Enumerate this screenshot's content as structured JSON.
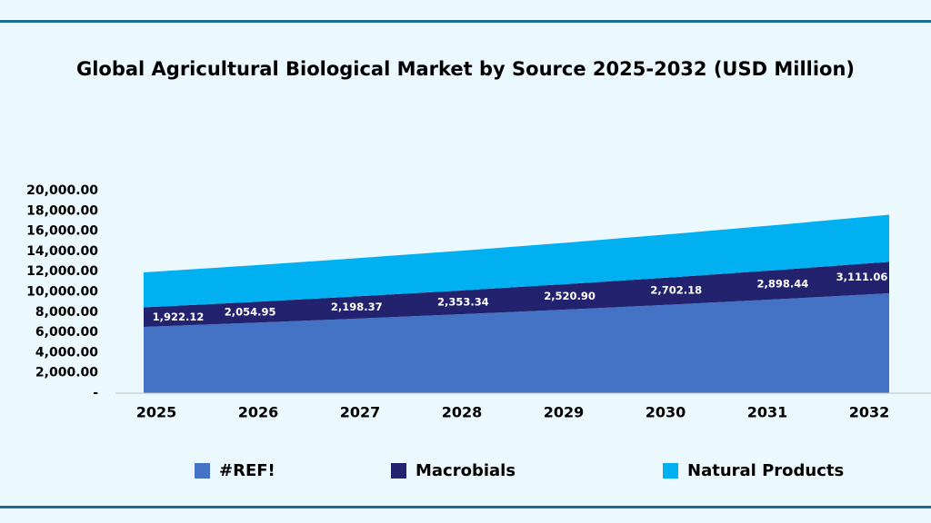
{
  "chart_data": {
    "type": "stacked-area",
    "title": "Global Agricultural Biological Market by Source 2025-2032 (USD Million)",
    "categories": [
      "2025",
      "2026",
      "2027",
      "2028",
      "2029",
      "2030",
      "2031",
      "2032"
    ],
    "series": [
      {
        "name": "#REF!",
        "color": "#4472c4",
        "values": [
          6550,
          6940,
          7360,
          7800,
          8270,
          8770,
          9300,
          9860
        ]
      },
      {
        "name": "Macrobials",
        "color": "#22226e",
        "values": [
          1922.12,
          2054.95,
          2198.37,
          2353.34,
          2520.9,
          2702.18,
          2898.44,
          3111.06
        ],
        "value_labels": [
          "1,922.12",
          "2,054.95",
          "2,198.37",
          "2,353.34",
          "2,520.90",
          "2,702.18",
          "2,898.44",
          "3,111.06"
        ]
      },
      {
        "name": "Natural Products",
        "color": "#00b0f0",
        "values": [
          3460,
          3610,
          3770,
          3930,
          4100,
          4280,
          4460,
          4650
        ]
      }
    ],
    "ylim": [
      0,
      20000
    ],
    "yticks": [
      {
        "value": 0,
        "label": "-"
      },
      {
        "value": 2000,
        "label": "2,000.00"
      },
      {
        "value": 4000,
        "label": "4,000.00"
      },
      {
        "value": 6000,
        "label": "6,000.00"
      },
      {
        "value": 8000,
        "label": "8,000.00"
      },
      {
        "value": 10000,
        "label": "10,000.00"
      },
      {
        "value": 12000,
        "label": "12,000.00"
      },
      {
        "value": 14000,
        "label": "14,000.00"
      },
      {
        "value": 16000,
        "label": "16,000.00"
      },
      {
        "value": 18000,
        "label": "18,000.00"
      },
      {
        "value": 20000,
        "label": "20,000.00"
      }
    ],
    "grid": false,
    "legend": "bottom"
  }
}
